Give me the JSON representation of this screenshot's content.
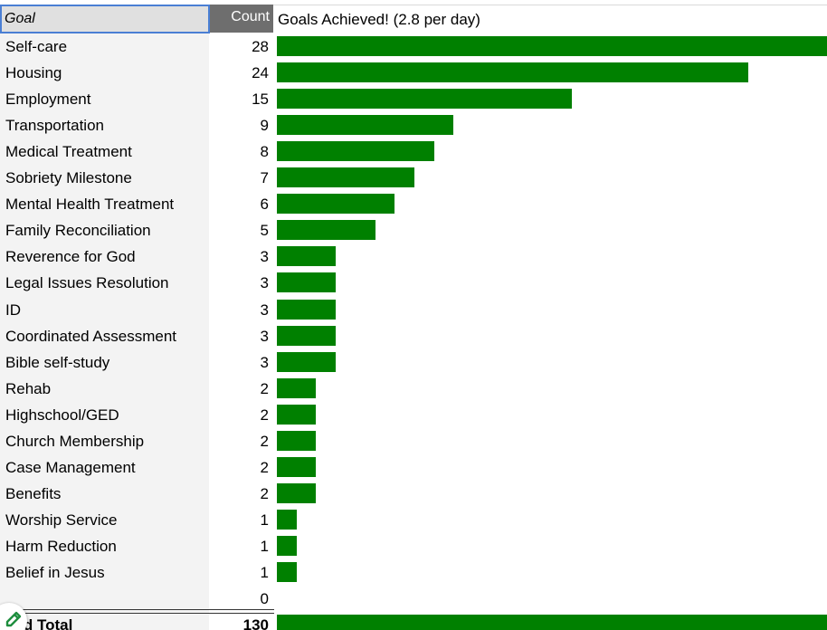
{
  "header": {
    "goal_label": "Goal",
    "count_label": "Count"
  },
  "chart_title": "Goals Achieved! (2.8 per day)",
  "rows": [
    {
      "goal": "Self-care",
      "count": "28"
    },
    {
      "goal": "Housing",
      "count": "24"
    },
    {
      "goal": "Employment",
      "count": "15"
    },
    {
      "goal": "Transportation",
      "count": "9"
    },
    {
      "goal": "Medical Treatment",
      "count": "8"
    },
    {
      "goal": "Sobriety Milestone",
      "count": "7"
    },
    {
      "goal": "Mental Health Treatment",
      "count": "6"
    },
    {
      "goal": "Family Reconciliation",
      "count": "5"
    },
    {
      "goal": "Reverence for God",
      "count": "3"
    },
    {
      "goal": "Legal Issues Resolution",
      "count": "3"
    },
    {
      "goal": "ID",
      "count": "3"
    },
    {
      "goal": "Coordinated Assessment",
      "count": "3"
    },
    {
      "goal": "Bible self-study",
      "count": "3"
    },
    {
      "goal": "Rehab",
      "count": "2"
    },
    {
      "goal": "Highschool/GED",
      "count": "2"
    },
    {
      "goal": "Church Membership",
      "count": "2"
    },
    {
      "goal": "Case Management",
      "count": "2"
    },
    {
      "goal": "Benefits",
      "count": "2"
    },
    {
      "goal": "Worship Service",
      "count": "1"
    },
    {
      "goal": "Harm Reduction",
      "count": "1"
    },
    {
      "goal": "Belief in Jesus",
      "count": "1"
    },
    {
      "goal": "",
      "count": "0"
    }
  ],
  "total": {
    "goal": "and Total",
    "count": "130"
  },
  "chart_data": {
    "type": "bar",
    "orientation": "horizontal",
    "title": "Goals Achieved! (2.8 per day)",
    "categories": [
      "Self-care",
      "Housing",
      "Employment",
      "Transportation",
      "Medical Treatment",
      "Sobriety Milestone",
      "Mental Health Treatment",
      "Family Reconciliation",
      "Reverence for God",
      "Legal Issues Resolution",
      "ID",
      "Coordinated Assessment",
      "Bible self-study",
      "Rehab",
      "Highschool/GED",
      "Church Membership",
      "Case Management",
      "Benefits",
      "Worship Service",
      "Harm Reduction",
      "Belief in Jesus",
      ""
    ],
    "values": [
      28,
      24,
      15,
      9,
      8,
      7,
      6,
      5,
      3,
      3,
      3,
      3,
      3,
      2,
      2,
      2,
      2,
      2,
      1,
      1,
      1,
      0
    ],
    "total": 130,
    "bar_color": "#008000"
  },
  "colors": {
    "bar": "#008000",
    "header_count_bg": "#6e6e6e",
    "selection_border": "#4a7fd4",
    "goal_column_bg": "#f3f3f3"
  },
  "icons": {
    "edit": "pencil-icon"
  }
}
